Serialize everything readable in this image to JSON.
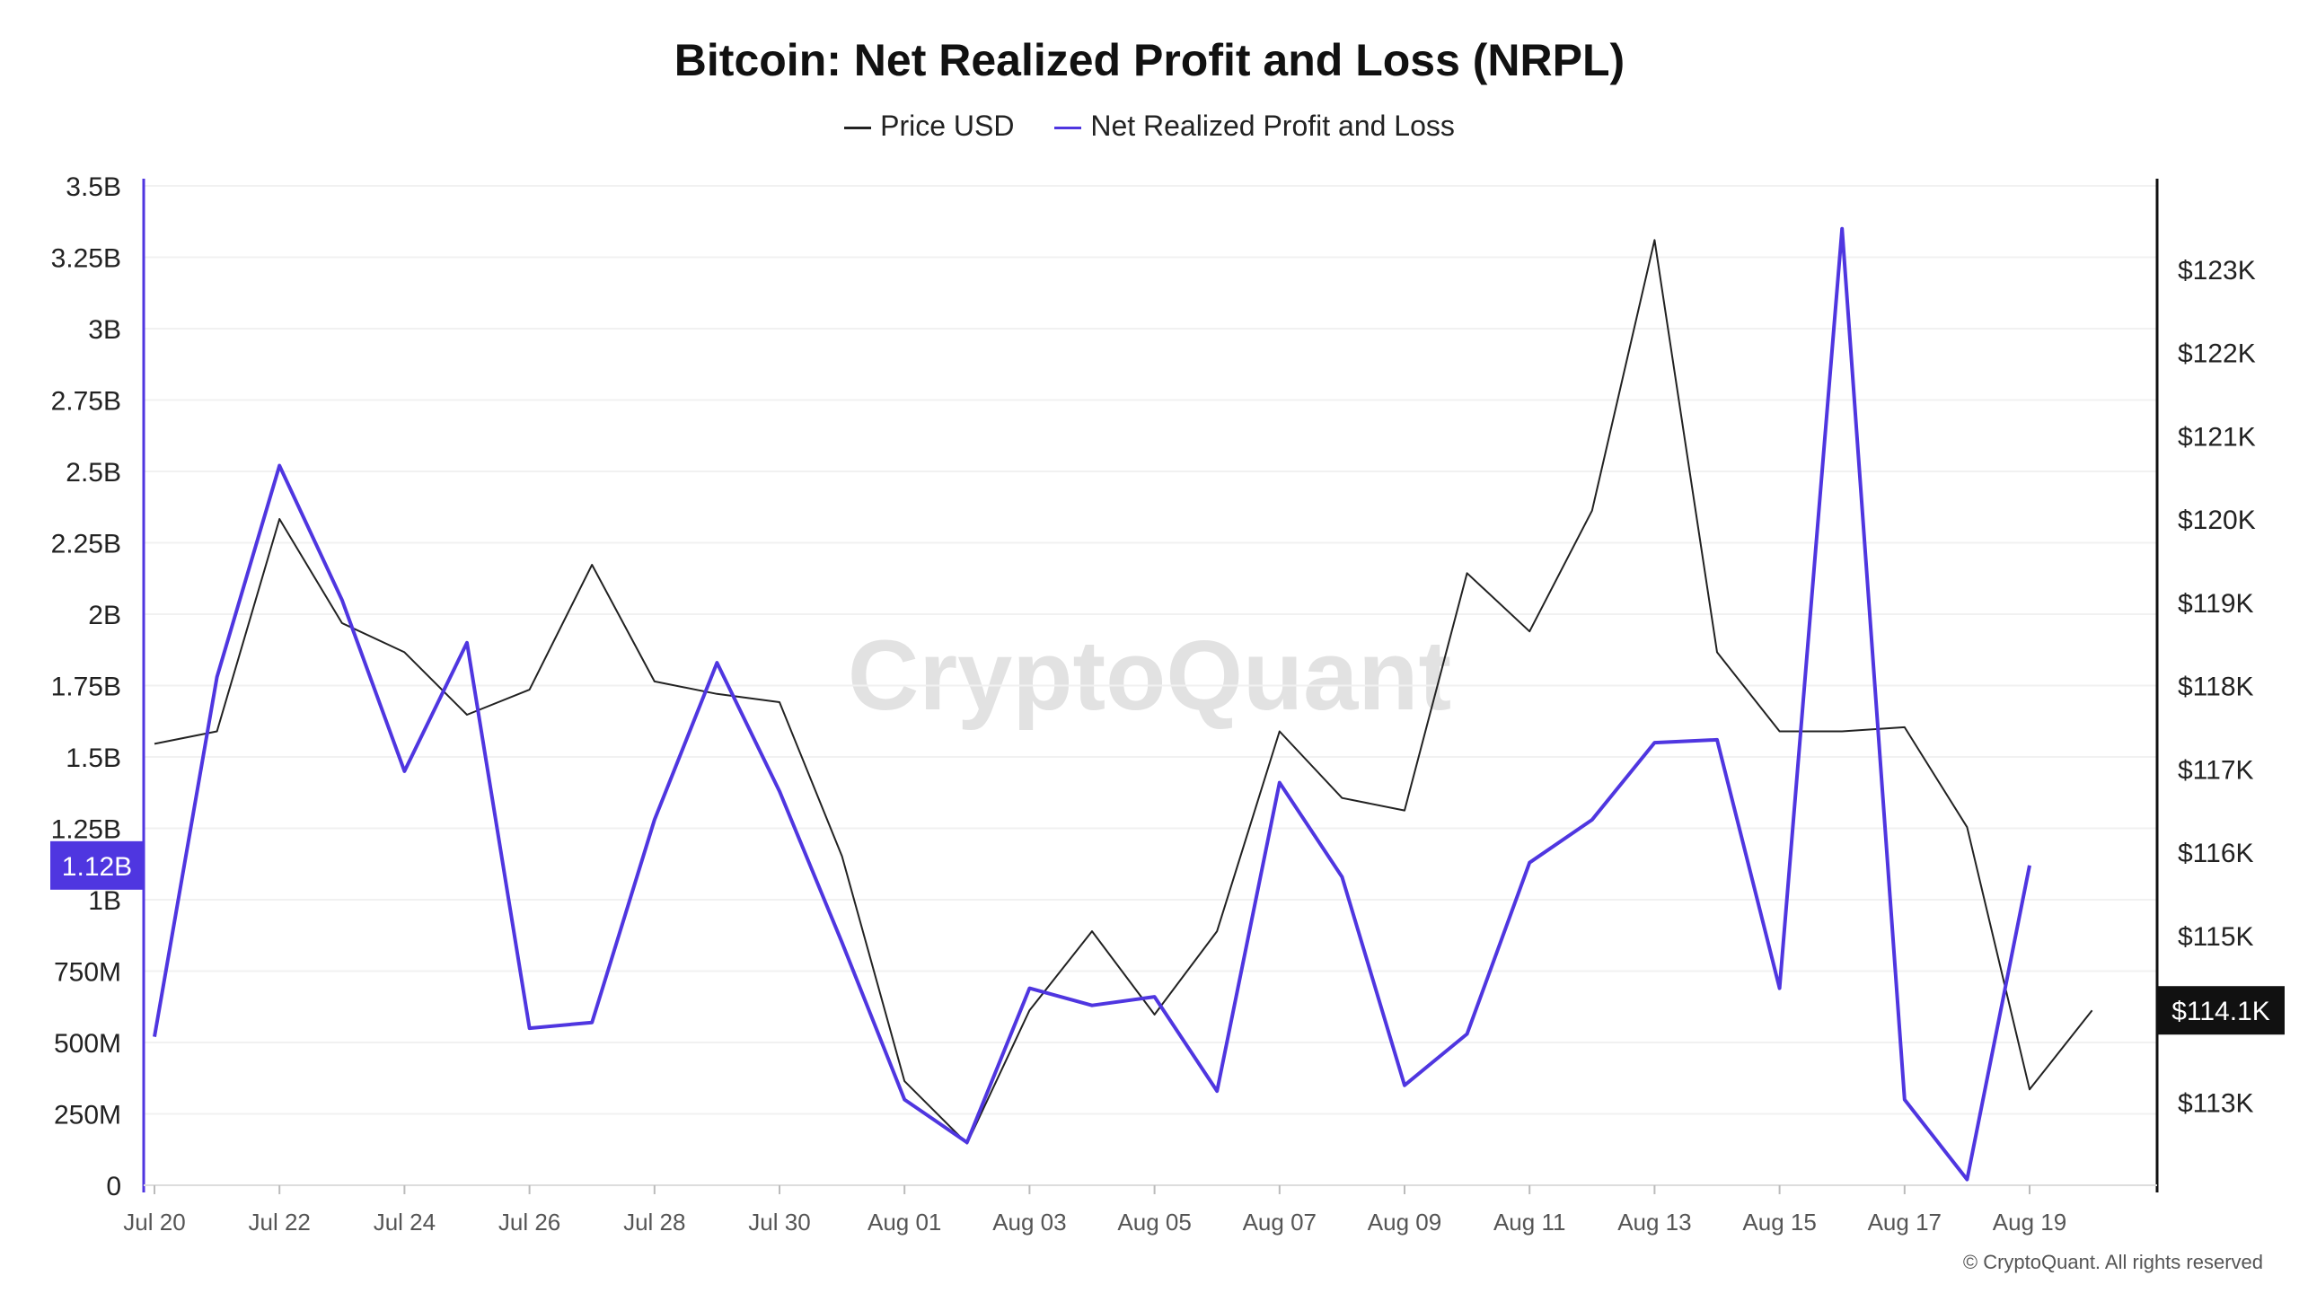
{
  "title": "Bitcoin: Net Realized Profit and Loss (NRPL)",
  "watermark": "CryptoQuant",
  "credit": "© CryptoQuant. All rights reserved",
  "colors": {
    "price": "#222222",
    "nrpl": "#4F36E0",
    "price_tag_bg": "#111111",
    "nrpl_tag_bg": "#4F36E0"
  },
  "chart_data": {
    "type": "line",
    "x": [
      "Jul 20",
      "Jul 21",
      "Jul 22",
      "Jul 23",
      "Jul 24",
      "Jul 25",
      "Jul 26",
      "Jul 27",
      "Jul 28",
      "Jul 29",
      "Jul 30",
      "Jul 31",
      "Aug 01",
      "Aug 02",
      "Aug 03",
      "Aug 04",
      "Aug 05",
      "Aug 06",
      "Aug 07",
      "Aug 08",
      "Aug 09",
      "Aug 10",
      "Aug 11",
      "Aug 12",
      "Aug 13",
      "Aug 14",
      "Aug 15",
      "Aug 16",
      "Aug 17",
      "Aug 18",
      "Aug 19",
      "Aug 20"
    ],
    "x_tick_labels": [
      "Jul 20",
      "Jul 22",
      "Jul 24",
      "Jul 26",
      "Jul 28",
      "Jul 30",
      "Aug 01",
      "Aug 03",
      "Aug 05",
      "Aug 07",
      "Aug 09",
      "Aug 11",
      "Aug 13",
      "Aug 15",
      "Aug 17",
      "Aug 19"
    ],
    "series": [
      {
        "name": "Price USD",
        "axis": "right",
        "values": [
          117300,
          117450,
          120000,
          118750,
          118400,
          117650,
          117950,
          119450,
          118050,
          117900,
          117800,
          115950,
          113250,
          112500,
          114100,
          115050,
          114050,
          115050,
          117450,
          116650,
          116500,
          119350,
          118650,
          120100,
          123350,
          118400,
          117450,
          117450,
          117500,
          116300,
          113150,
          114100
        ]
      },
      {
        "name": "Net Realized Profit and Loss",
        "axis": "left",
        "values": [
          520000000,
          1780000000,
          2520000000,
          2050000000,
          1450000000,
          1900000000,
          550000000,
          570000000,
          1280000000,
          1830000000,
          1380000000,
          850000000,
          300000000,
          150000000,
          690000000,
          630000000,
          660000000,
          330000000,
          1410000000,
          1080000000,
          350000000,
          530000000,
          1130000000,
          1280000000,
          1550000000,
          1560000000,
          690000000,
          3350000000,
          300000000,
          20000000,
          1120000000,
          null
        ]
      }
    ],
    "y_left": {
      "ylim": [
        0,
        3500000000
      ],
      "ticks": [
        "0",
        "250M",
        "500M",
        "750M",
        "1B",
        "1.25B",
        "1.5B",
        "1.75B",
        "2B",
        "2.25B",
        "2.5B",
        "2.75B",
        "3B",
        "3.25B",
        "3.5B"
      ]
    },
    "y_right": {
      "ylim": [
        112000,
        124000
      ],
      "ticks": [
        "$113K",
        "$114K",
        "$115K",
        "$116K",
        "$117K",
        "$118K",
        "$119K",
        "$120K",
        "$121K",
        "$122K",
        "$123K"
      ]
    },
    "last_value_tags": {
      "nrpl": "1.12B",
      "price": "$114.1K"
    },
    "grid": true,
    "legend_position": "top-center"
  }
}
